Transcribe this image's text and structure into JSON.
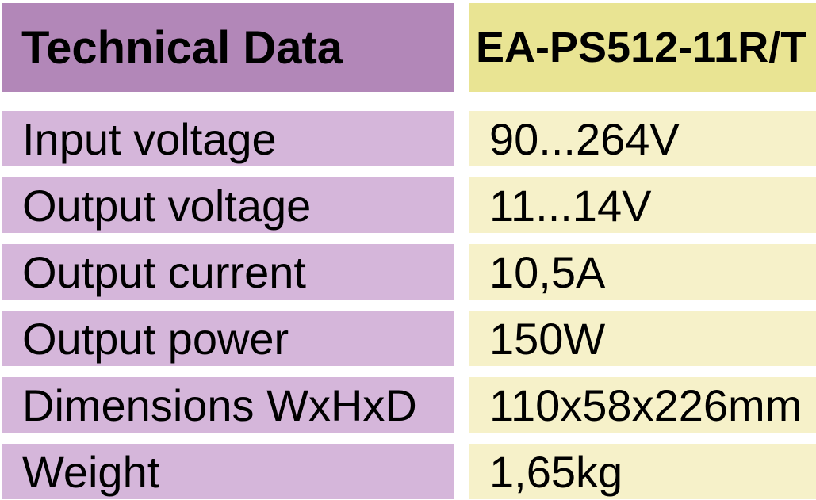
{
  "table": {
    "header": {
      "label": "Technical Data",
      "model": "EA-PS512-11R/T"
    },
    "rows": [
      {
        "label": "Input voltage",
        "value": "90...264V"
      },
      {
        "label": "Output voltage",
        "value": "11...14V"
      },
      {
        "label": "Output current",
        "value": "10,5A"
      },
      {
        "label": "Output power",
        "value": "150W"
      },
      {
        "label": "Dimensions WxHxD",
        "value": "110x58x226mm"
      },
      {
        "label": "Weight",
        "value": "1,65kg"
      }
    ],
    "colors": {
      "header_left_bg": "#b287b8",
      "header_right_bg": "#e9e493",
      "row_left_bg": "#d5b6da",
      "row_right_bg": "#f6f1c9",
      "text": "#000000",
      "page_background": "#ffffff"
    }
  },
  "chart_data": {
    "type": "table",
    "title": "Technical Data",
    "columns": [
      "Technical Data",
      "EA-PS512-11R/T"
    ],
    "rows": [
      [
        "Input voltage",
        "90...264V"
      ],
      [
        "Output voltage",
        "11...14V"
      ],
      [
        "Output current",
        "10,5A"
      ],
      [
        "Output power",
        "150W"
      ],
      [
        "Dimensions WxHxD",
        "110x58x226mm"
      ],
      [
        "Weight",
        "1,65kg"
      ]
    ]
  }
}
